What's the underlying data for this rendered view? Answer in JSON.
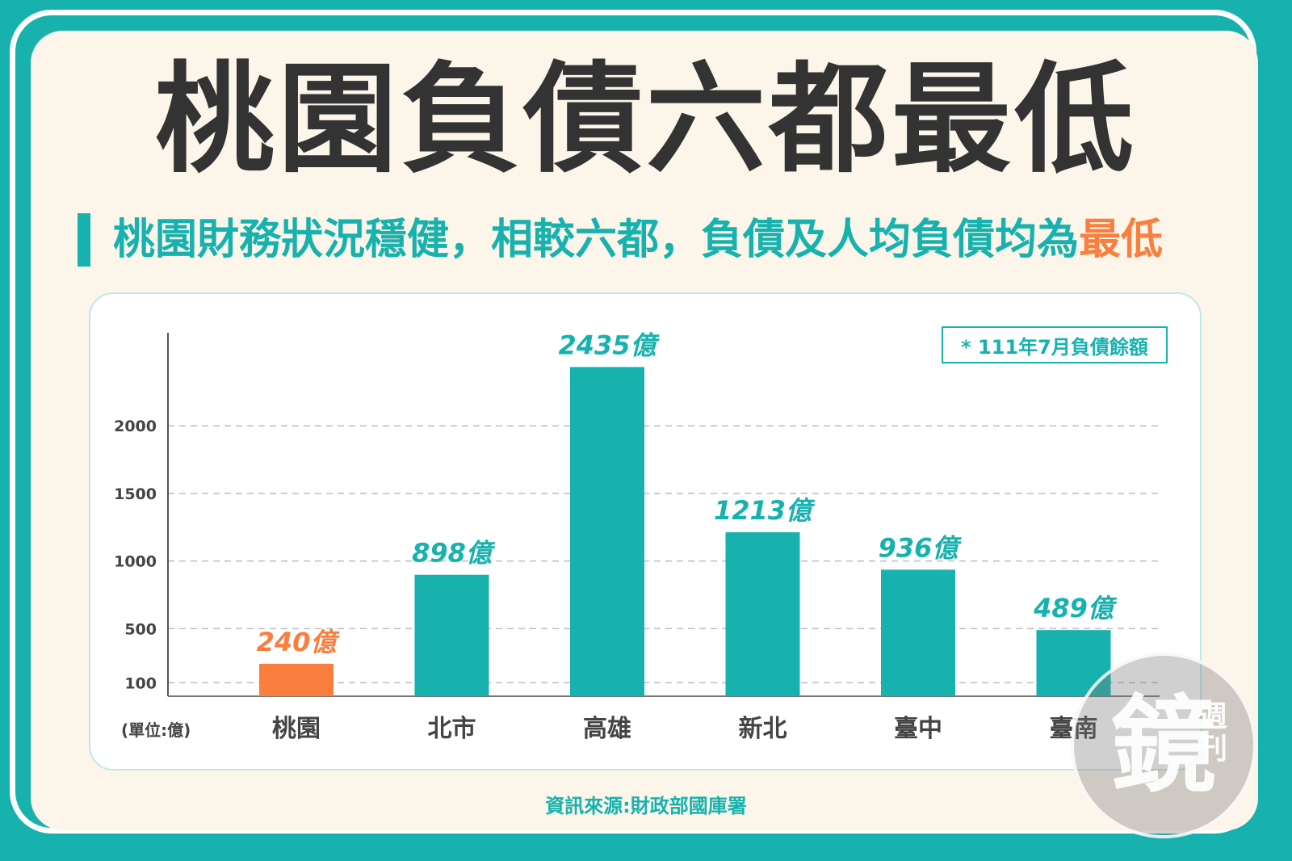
{
  "title": "桃園負債六都最低",
  "subtitle": {
    "main": "桃園財務狀況穩健，相較六都，負債及人均負債均為",
    "highlight": "最低"
  },
  "note": "* 111年7月負債餘額",
  "unit_label": "(單位:億)",
  "source": "資訊來源:財政部國庫署",
  "watermark": {
    "main": "鏡",
    "side": "週刊"
  },
  "colors": {
    "teal": "#17b2ae",
    "orange": "#fa7e3d",
    "card": "#fcf5ea",
    "text_dark": "#333333"
  },
  "chart_data": {
    "type": "bar",
    "categories": [
      "桃園",
      "北市",
      "高雄",
      "新北",
      "臺中",
      "臺南"
    ],
    "values": [
      240,
      898,
      2435,
      1213,
      936,
      489
    ],
    "value_labels": [
      "240億",
      "898億",
      "2435億",
      "1213億",
      "936億",
      "489億"
    ],
    "highlight_index": 0,
    "y_ticks": [
      100,
      500,
      1000,
      1500,
      2000
    ],
    "ylim": [
      0,
      2500
    ],
    "grid": true,
    "title": "",
    "xlabel": "",
    "ylabel": "(單位:億)"
  }
}
